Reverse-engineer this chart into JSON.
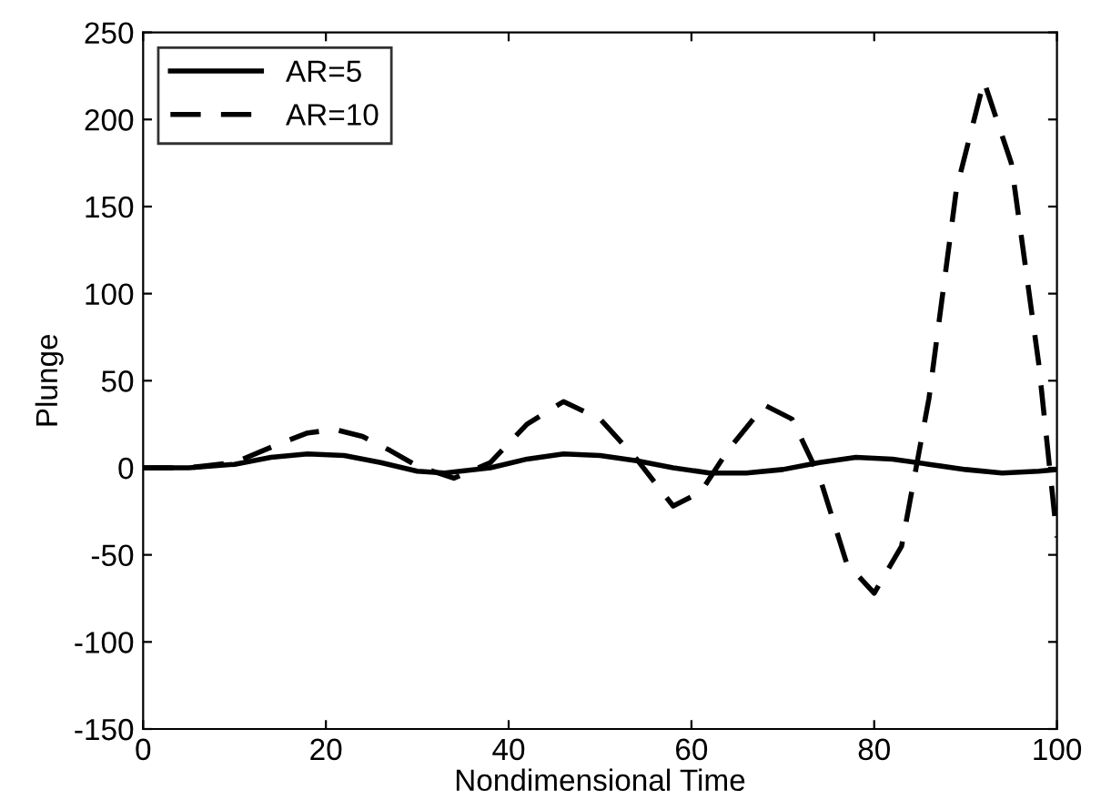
{
  "chart_data": {
    "type": "line",
    "xlabel": "Nondimensional Time",
    "ylabel": "Plunge",
    "xlim": [
      0,
      100
    ],
    "xticks": [
      0,
      20,
      40,
      60,
      80,
      100
    ],
    "ylim": [
      -150,
      250
    ],
    "yticks": [
      -150,
      -100,
      -50,
      0,
      50,
      100,
      150,
      200,
      250
    ],
    "grid": false,
    "legend": "top left",
    "marker": "none",
    "series": [
      {
        "name": "AR=5",
        "color": "#000000",
        "line_style": "solid",
        "x": [
          0,
          5,
          10,
          14,
          18,
          22,
          26,
          30,
          33,
          38,
          42,
          46,
          50,
          54,
          58,
          62,
          66,
          70,
          74,
          78,
          82,
          86,
          90,
          94,
          98,
          100
        ],
        "values": [
          0,
          0,
          2,
          6,
          8,
          7,
          3,
          -2,
          -3,
          0,
          5,
          8,
          7,
          4,
          0,
          -3,
          -3,
          -1,
          3,
          6,
          5,
          2,
          -1,
          -3,
          -2,
          -1
        ]
      },
      {
        "name": "AR=10",
        "color": "#000000",
        "line_style": "dashed",
        "x": [
          0,
          5,
          10,
          15,
          18,
          21,
          24,
          27,
          30,
          34,
          38,
          42,
          46,
          50,
          54,
          58,
          61,
          64,
          68,
          71,
          74,
          77,
          80,
          83,
          86,
          89,
          92,
          95,
          98,
          100
        ],
        "values": [
          0,
          0,
          3,
          14,
          20,
          22,
          18,
          10,
          1,
          -6,
          3,
          25,
          38,
          28,
          5,
          -22,
          -14,
          10,
          36,
          28,
          -5,
          -55,
          -72,
          -45,
          40,
          160,
          222,
          175,
          60,
          -40
        ]
      }
    ]
  }
}
